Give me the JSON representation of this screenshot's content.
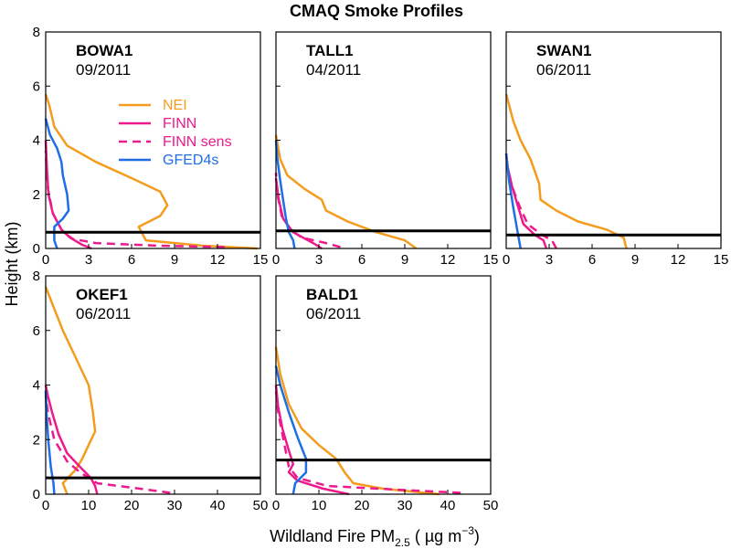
{
  "chart_data": {
    "type": "line",
    "title": "CMAQ Smoke Profiles",
    "ylabel": "Height (km)",
    "xlabel_main": "Wildland Fire PM",
    "xlabel_sub": "2.5",
    "xlabel_unit_open": " ( ",
    "xlabel_unit": "µg m",
    "xlabel_sup": "−3",
    "xlabel_unit_close": ")",
    "colors": {
      "NEI": "#f39c1d",
      "FINN": "#ec1a8c",
      "FINN sens": "#ec1a8c",
      "GFED4s": "#1e6ee6",
      "pbl": "#000000"
    },
    "legend": [
      {
        "name": "NEI",
        "style": "solid"
      },
      {
        "name": "FINN",
        "style": "solid"
      },
      {
        "name": "FINN sens",
        "style": "dashed"
      },
      {
        "name": "GFED4s",
        "style": "solid"
      }
    ],
    "panels": [
      {
        "site": "BOWA1",
        "date": "09/2011",
        "xlim": [
          0,
          15
        ],
        "xticks": [
          "0",
          "3",
          "6",
          "9",
          "12",
          "15"
        ],
        "ylim": [
          0,
          8
        ],
        "yticks": [
          "0",
          "2",
          "4",
          "6",
          "8"
        ],
        "pbl_height": 0.6,
        "series": [
          {
            "name": "NEI",
            "points": [
              [
                14.8,
                0
              ],
              [
                11,
                0.1
              ],
              [
                7,
                0.3
              ],
              [
                6.5,
                0.8
              ],
              [
                8,
                1.2
              ],
              [
                8.5,
                1.6
              ],
              [
                8,
                2.1
              ],
              [
                6,
                2.6
              ],
              [
                3.5,
                3.2
              ],
              [
                1.5,
                3.8
              ],
              [
                0.6,
                4.5
              ],
              [
                0.25,
                5.3
              ],
              [
                0,
                5.7
              ]
            ]
          },
          {
            "name": "FINN",
            "points": [
              [
                3.2,
                0
              ],
              [
                2.5,
                0.15
              ],
              [
                1.7,
                0.4
              ],
              [
                1.1,
                0.7
              ],
              [
                0.5,
                1.3
              ],
              [
                0.2,
                2
              ],
              [
                0.1,
                2.8
              ],
              [
                0,
                4
              ]
            ]
          },
          {
            "name": "FINN sens",
            "points": [
              [
                12.5,
                0.05
              ],
              [
                8,
                0.1
              ],
              [
                3.5,
                0.2
              ],
              [
                1.9,
                0.35
              ],
              [
                1.2,
                0.6
              ],
              [
                0.5,
                1.3
              ],
              [
                0.15,
                2.2
              ],
              [
                0,
                3.6
              ]
            ]
          },
          {
            "name": "GFED4s",
            "points": [
              [
                0.8,
                0
              ],
              [
                0.6,
                0.3
              ],
              [
                0.6,
                0.8
              ],
              [
                1.2,
                1.1
              ],
              [
                1.6,
                1.4
              ],
              [
                1.5,
                2
              ],
              [
                1.2,
                2.7
              ],
              [
                1.1,
                3.2
              ],
              [
                0.8,
                3.7
              ],
              [
                0.3,
                4.2
              ],
              [
                0,
                4.8
              ]
            ]
          }
        ]
      },
      {
        "site": "TALL1",
        "date": "04/2011",
        "xlim": [
          0,
          15
        ],
        "xticks": [
          "0",
          "3",
          "6",
          "9",
          "12",
          "15"
        ],
        "ylim": [
          0,
          8
        ],
        "yticks": [
          "0",
          "2",
          "4",
          "6",
          "8"
        ],
        "pbl_height": 0.65,
        "series": [
          {
            "name": "NEI",
            "points": [
              [
                9.8,
                0
              ],
              [
                9,
                0.3
              ],
              [
                7,
                0.6
              ],
              [
                5,
                1
              ],
              [
                3.5,
                1.4
              ],
              [
                3.2,
                1.8
              ],
              [
                2,
                2.2
              ],
              [
                0.8,
                2.7
              ],
              [
                0.3,
                3.3
              ],
              [
                0,
                4.2
              ]
            ]
          },
          {
            "name": "FINN",
            "points": [
              [
                3.2,
                0
              ],
              [
                2.6,
                0.2
              ],
              [
                1.2,
                0.6
              ],
              [
                0.5,
                1.1
              ],
              [
                0.2,
                1.8
              ],
              [
                0,
                2.6
              ]
            ]
          },
          {
            "name": "FINN sens",
            "points": [
              [
                4.5,
                0.05
              ],
              [
                3.5,
                0.2
              ],
              [
                1.8,
                0.4
              ],
              [
                1,
                0.7
              ],
              [
                0.4,
                1.2
              ],
              [
                0.1,
                2
              ],
              [
                0,
                2.8
              ]
            ]
          },
          {
            "name": "GFED4s",
            "points": [
              [
                1.3,
                0
              ],
              [
                1.2,
                0.3
              ],
              [
                0.9,
                0.6
              ],
              [
                0.7,
                1.1
              ],
              [
                0.5,
                1.8
              ],
              [
                0.3,
                2.5
              ],
              [
                0.1,
                3.3
              ],
              [
                0,
                4
              ]
            ]
          }
        ]
      },
      {
        "site": "SWAN1",
        "date": "06/2011",
        "xlim": [
          0,
          15
        ],
        "xticks": [
          "0",
          "3",
          "6",
          "9",
          "12",
          "15"
        ],
        "ylim": [
          0,
          8
        ],
        "yticks": [
          "0",
          "2",
          "4",
          "6",
          "8"
        ],
        "pbl_height": 0.5,
        "series": [
          {
            "name": "NEI",
            "points": [
              [
                8.4,
                0
              ],
              [
                8.2,
                0.4
              ],
              [
                7,
                0.7
              ],
              [
                5,
                1
              ],
              [
                3.5,
                1.4
              ],
              [
                2.4,
                1.8
              ],
              [
                2.3,
                2.4
              ],
              [
                1.7,
                3.3
              ],
              [
                1,
                4
              ],
              [
                0.5,
                4.7
              ],
              [
                0,
                5.7
              ]
            ]
          },
          {
            "name": "FINN",
            "points": [
              [
                2.8,
                0
              ],
              [
                2.6,
                0.3
              ],
              [
                2,
                0.5
              ],
              [
                1.2,
                0.9
              ],
              [
                0.8,
                1.6
              ],
              [
                0.4,
                2.3
              ],
              [
                0.1,
                3
              ],
              [
                0,
                3.5
              ]
            ]
          },
          {
            "name": "FINN sens",
            "points": [
              [
                3.5,
                0
              ],
              [
                3.2,
                0.3
              ],
              [
                2.5,
                0.5
              ],
              [
                1.5,
                0.9
              ],
              [
                0.9,
                1.6
              ],
              [
                0.4,
                2.3
              ],
              [
                0.1,
                3
              ],
              [
                0,
                3.5
              ]
            ]
          },
          {
            "name": "GFED4s",
            "points": [
              [
                1,
                0
              ],
              [
                0.8,
                0.6
              ],
              [
                0.5,
                1.5
              ],
              [
                0.2,
                2.5
              ],
              [
                0,
                3.5
              ]
            ]
          }
        ]
      },
      {
        "site": "OKEF1",
        "date": "06/2011",
        "xlim": [
          0,
          50
        ],
        "xticks": [
          "0",
          "10",
          "20",
          "30",
          "40",
          "50"
        ],
        "ylim": [
          0,
          8
        ],
        "yticks": [
          "0",
          "2",
          "4",
          "6",
          "8"
        ],
        "pbl_height": 0.6,
        "series": [
          {
            "name": "NEI",
            "points": [
              [
                5,
                0
              ],
              [
                4,
                0.4
              ],
              [
                7,
                0.9
              ],
              [
                8.5,
                1.3
              ],
              [
                10,
                1.8
              ],
              [
                11.5,
                2.3
              ],
              [
                11,
                3
              ],
              [
                10,
                4
              ],
              [
                7,
                5
              ],
              [
                4,
                6
              ],
              [
                1.5,
                7
              ],
              [
                0,
                7.6
              ]
            ]
          },
          {
            "name": "FINN",
            "points": [
              [
                12,
                0
              ],
              [
                11.5,
                0.3
              ],
              [
                10.5,
                0.6
              ],
              [
                8,
                1
              ],
              [
                5,
                1.5
              ],
              [
                3,
                2.2
              ],
              [
                1.5,
                3
              ],
              [
                0.5,
                3.6
              ],
              [
                0,
                4
              ]
            ]
          },
          {
            "name": "FINN sens",
            "points": [
              [
                29,
                0.05
              ],
              [
                22,
                0.2
              ],
              [
                12,
                0.4
              ],
              [
                8,
                0.8
              ],
              [
                5,
                1.2
              ],
              [
                2,
                2
              ],
              [
                0.5,
                3
              ],
              [
                0,
                3.6
              ]
            ]
          },
          {
            "name": "GFED4s",
            "points": [
              [
                2,
                0
              ],
              [
                1.8,
                0.4
              ],
              [
                1.2,
                1
              ],
              [
                0.6,
                2
              ],
              [
                0.2,
                3
              ],
              [
                0,
                3.8
              ]
            ]
          }
        ]
      },
      {
        "site": "BALD1",
        "date": "06/2011",
        "xlim": [
          0,
          50
        ],
        "xticks": [
          "0",
          "10",
          "20",
          "30",
          "40",
          "50"
        ],
        "ylim": [
          0,
          8
        ],
        "yticks": [
          "0",
          "2",
          "4",
          "6",
          "8"
        ],
        "pbl_height": 1.25,
        "series": [
          {
            "name": "NEI",
            "points": [
              [
                38,
                0
              ],
              [
                25,
                0.2
              ],
              [
                18,
                0.4
              ],
              [
                16,
                0.8
              ],
              [
                14,
                1.3
              ],
              [
                10,
                1.8
              ],
              [
                6,
                2.4
              ],
              [
                3,
                3.3
              ],
              [
                1,
                4.4
              ],
              [
                0,
                5.4
              ]
            ]
          },
          {
            "name": "FINN",
            "points": [
              [
                17,
                0
              ],
              [
                11,
                0.2
              ],
              [
                5,
                0.5
              ],
              [
                3,
                0.8
              ],
              [
                4,
                1.1
              ],
              [
                3,
                1.6
              ],
              [
                1.5,
                2.4
              ],
              [
                0.5,
                3.2
              ],
              [
                0,
                4
              ]
            ]
          },
          {
            "name": "FINN sens",
            "points": [
              [
                43,
                0.05
              ],
              [
                30,
                0.15
              ],
              [
                12,
                0.3
              ],
              [
                5,
                0.6
              ],
              [
                3,
                1
              ],
              [
                2,
                1.8
              ],
              [
                0.5,
                3
              ],
              [
                0,
                3.8
              ]
            ]
          },
          {
            "name": "GFED4s",
            "points": [
              [
                4,
                0
              ],
              [
                4.5,
                0.4
              ],
              [
                7,
                0.8
              ],
              [
                7,
                1.3
              ],
              [
                5,
                2.1
              ],
              [
                3,
                3
              ],
              [
                1,
                4
              ],
              [
                0,
                4.7
              ]
            ]
          }
        ]
      }
    ]
  }
}
